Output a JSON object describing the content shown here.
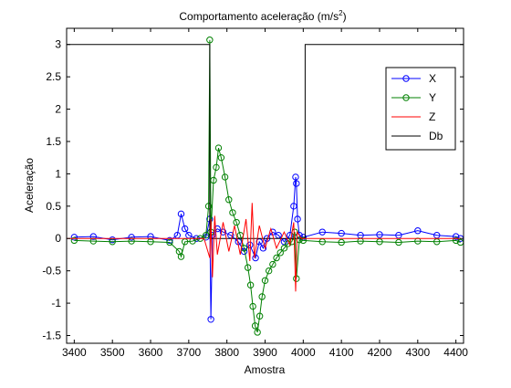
{
  "chart_data": {
    "type": "line",
    "title": {
      "main": "Comportamento aceleração (m/s",
      "sup": "2",
      "tail": ")"
    },
    "xlabel": "Amostra",
    "ylabel": "Aceleração",
    "xlim": [
      3380,
      4420
    ],
    "ylim": [
      -1.62,
      3.25
    ],
    "xticks": [
      3400,
      3500,
      3600,
      3700,
      3800,
      3900,
      4000,
      4100,
      4200,
      4300,
      4400
    ],
    "yticks": [
      -1.5,
      -1,
      -0.5,
      0,
      0.5,
      1,
      1.5,
      2,
      2.5,
      3
    ],
    "ytick_labels": [
      "-1.5",
      "-1",
      "-0.5",
      "0",
      "0.5",
      "1",
      "1.5",
      "2",
      "2.5",
      "3"
    ],
    "grid": false,
    "legend_position": "top-right",
    "series": [
      {
        "name": "X",
        "color": "#0000ff",
        "marker": "circle",
        "points": [
          [
            3400,
            0.02
          ],
          [
            3450,
            0.03
          ],
          [
            3500,
            -0.02
          ],
          [
            3550,
            0.02
          ],
          [
            3600,
            0.03
          ],
          [
            3650,
            -0.03
          ],
          [
            3670,
            0.05
          ],
          [
            3680,
            0.38
          ],
          [
            3690,
            0.15
          ],
          [
            3700,
            0.05
          ],
          [
            3720,
            0.0
          ],
          [
            3745,
            0.02
          ],
          [
            3755,
            0.3
          ],
          [
            3758,
            -1.25
          ],
          [
            3762,
            0.05
          ],
          [
            3775,
            0.15
          ],
          [
            3790,
            0.1
          ],
          [
            3810,
            0.05
          ],
          [
            3830,
            -0.05
          ],
          [
            3845,
            -0.2
          ],
          [
            3860,
            -0.1
          ],
          [
            3875,
            -0.3
          ],
          [
            3885,
            -0.05
          ],
          [
            3895,
            -0.15
          ],
          [
            3905,
            0.0
          ],
          [
            3920,
            0.1
          ],
          [
            3935,
            0.05
          ],
          [
            3950,
            -0.05
          ],
          [
            3965,
            0.05
          ],
          [
            3975,
            0.5
          ],
          [
            3980,
            0.95
          ],
          [
            3982,
            0.85
          ],
          [
            3985,
            0.3
          ],
          [
            3990,
            0.05
          ],
          [
            4000,
            0.02
          ],
          [
            4050,
            0.1
          ],
          [
            4100,
            0.08
          ],
          [
            4150,
            0.05
          ],
          [
            4200,
            0.06
          ],
          [
            4250,
            0.05
          ],
          [
            4300,
            0.12
          ],
          [
            4350,
            0.05
          ],
          [
            4400,
            0.03
          ],
          [
            4412,
            0.0
          ]
        ]
      },
      {
        "name": "Y",
        "color": "#008000",
        "marker": "circle",
        "points": [
          [
            3400,
            -0.03
          ],
          [
            3450,
            -0.04
          ],
          [
            3500,
            -0.05
          ],
          [
            3550,
            -0.04
          ],
          [
            3600,
            -0.05
          ],
          [
            3650,
            -0.06
          ],
          [
            3675,
            -0.2
          ],
          [
            3680,
            -0.28
          ],
          [
            3690,
            -0.05
          ],
          [
            3710,
            -0.04
          ],
          [
            3730,
            0.0
          ],
          [
            3745,
            0.05
          ],
          [
            3752,
            0.5
          ],
          [
            3755,
            3.07
          ],
          [
            3758,
            0.1
          ],
          [
            3765,
            0.9
          ],
          [
            3772,
            1.1
          ],
          [
            3778,
            1.4
          ],
          [
            3785,
            1.25
          ],
          [
            3795,
            0.95
          ],
          [
            3805,
            0.6
          ],
          [
            3815,
            0.4
          ],
          [
            3825,
            0.25
          ],
          [
            3835,
            0.05
          ],
          [
            3845,
            -0.15
          ],
          [
            3855,
            -0.45
          ],
          [
            3862,
            -0.72
          ],
          [
            3868,
            -1.05
          ],
          [
            3874,
            -1.35
          ],
          [
            3880,
            -1.45
          ],
          [
            3886,
            -1.2
          ],
          [
            3892,
            -0.9
          ],
          [
            3900,
            -0.65
          ],
          [
            3910,
            -0.5
          ],
          [
            3920,
            -0.4
          ],
          [
            3930,
            -0.3
          ],
          [
            3940,
            -0.22
          ],
          [
            3950,
            -0.15
          ],
          [
            3960,
            -0.08
          ],
          [
            3970,
            -0.05
          ],
          [
            3978,
            0.1
          ],
          [
            3982,
            -0.62
          ],
          [
            3990,
            -0.02
          ],
          [
            4000,
            -0.03
          ],
          [
            4050,
            -0.05
          ],
          [
            4100,
            -0.06
          ],
          [
            4150,
            -0.04
          ],
          [
            4200,
            -0.05
          ],
          [
            4250,
            -0.06
          ],
          [
            4300,
            -0.04
          ],
          [
            4350,
            -0.05
          ],
          [
            4400,
            -0.03
          ],
          [
            4412,
            -0.06
          ]
        ]
      },
      {
        "name": "Z",
        "color": "#ff0000",
        "marker": "none",
        "points": [
          [
            3380,
            0.0
          ],
          [
            3740,
            0.0
          ],
          [
            3755,
            -0.3
          ],
          [
            3758,
            0.3
          ],
          [
            3762,
            -0.6
          ],
          [
            3768,
            0.35
          ],
          [
            3775,
            -0.25
          ],
          [
            3790,
            0.25
          ],
          [
            3805,
            -0.2
          ],
          [
            3820,
            0.2
          ],
          [
            3835,
            -0.25
          ],
          [
            3850,
            0.3
          ],
          [
            3860,
            -0.35
          ],
          [
            3866,
            0.55
          ],
          [
            3872,
            -0.3
          ],
          [
            3885,
            0.2
          ],
          [
            3900,
            -0.15
          ],
          [
            3915,
            0.15
          ],
          [
            3930,
            -0.15
          ],
          [
            3950,
            0.1
          ],
          [
            3965,
            -0.1
          ],
          [
            3975,
            0.25
          ],
          [
            3980,
            -0.82
          ],
          [
            3984,
            0.1
          ],
          [
            3995,
            0.0
          ],
          [
            4412,
            0.0
          ]
        ]
      },
      {
        "name": "Db",
        "color": "#000000",
        "marker": "none",
        "points": [
          [
            3380,
            3
          ],
          [
            3755,
            3
          ],
          [
            3755,
            0
          ],
          [
            4005,
            0
          ],
          [
            4005,
            3
          ],
          [
            4420,
            3
          ]
        ]
      }
    ]
  }
}
